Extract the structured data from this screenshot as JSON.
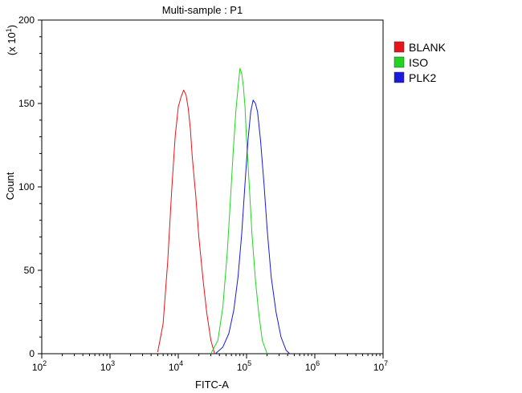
{
  "chart_data": {
    "type": "line",
    "title": "Multi-sample : P1",
    "xlabel": "FITC-A",
    "ylabel": "Count",
    "y_multiplier_label": {
      "prefix": "(x 10",
      "exp": "1",
      "suffix": ")"
    },
    "x_scale": "log",
    "xlim": [
      100,
      10000000
    ],
    "ylim": [
      0,
      200
    ],
    "x_ticks": [
      {
        "base": "10",
        "exp": "2",
        "value": 100
      },
      {
        "base": "10",
        "exp": "3",
        "value": 1000
      },
      {
        "base": "10",
        "exp": "4",
        "value": 10000
      },
      {
        "base": "10",
        "exp": "5",
        "value": 100000
      },
      {
        "base": "10",
        "exp": "6",
        "value": 1000000
      },
      {
        "base": "10",
        "exp": "7",
        "value": 10000000
      }
    ],
    "y_ticks": [
      "0",
      "50",
      "100",
      "150",
      "200"
    ],
    "grid": false,
    "legend_position": "top-right",
    "series": [
      {
        "name": "BLANK",
        "color": "#e8141b",
        "x": [
          5000,
          6000,
          7000,
          8000,
          9000,
          10000,
          11000,
          12000,
          13000,
          14000,
          15000,
          16000,
          18000,
          20000,
          23000,
          26000,
          30000,
          34000
        ],
        "y": [
          1,
          18,
          55,
          98,
          130,
          148,
          154,
          158,
          155,
          147,
          135,
          118,
          95,
          70,
          45,
          25,
          8,
          0
        ]
      },
      {
        "name": "ISO",
        "color": "#22d422",
        "x": [
          30000,
          38000,
          45000,
          52000,
          58000,
          64000,
          70000,
          76000,
          80000,
          85000,
          90000,
          95000,
          100000,
          110000,
          120000,
          135000,
          150000,
          170000,
          200000
        ],
        "y": [
          0,
          8,
          28,
          60,
          92,
          122,
          146,
          162,
          171,
          168,
          160,
          148,
          128,
          100,
          72,
          44,
          25,
          8,
          0
        ]
      },
      {
        "name": "PLK2",
        "color": "#1a1adc",
        "x": [
          35000,
          45000,
          55000,
          65000,
          75000,
          85000,
          95000,
          105000,
          115000,
          125000,
          135000,
          145000,
          160000,
          180000,
          200000,
          230000,
          270000,
          320000,
          380000,
          430000
        ],
        "y": [
          0,
          4,
          12,
          26,
          46,
          72,
          102,
          128,
          145,
          152,
          150,
          145,
          128,
          102,
          75,
          46,
          25,
          10,
          2,
          0
        ]
      }
    ]
  }
}
